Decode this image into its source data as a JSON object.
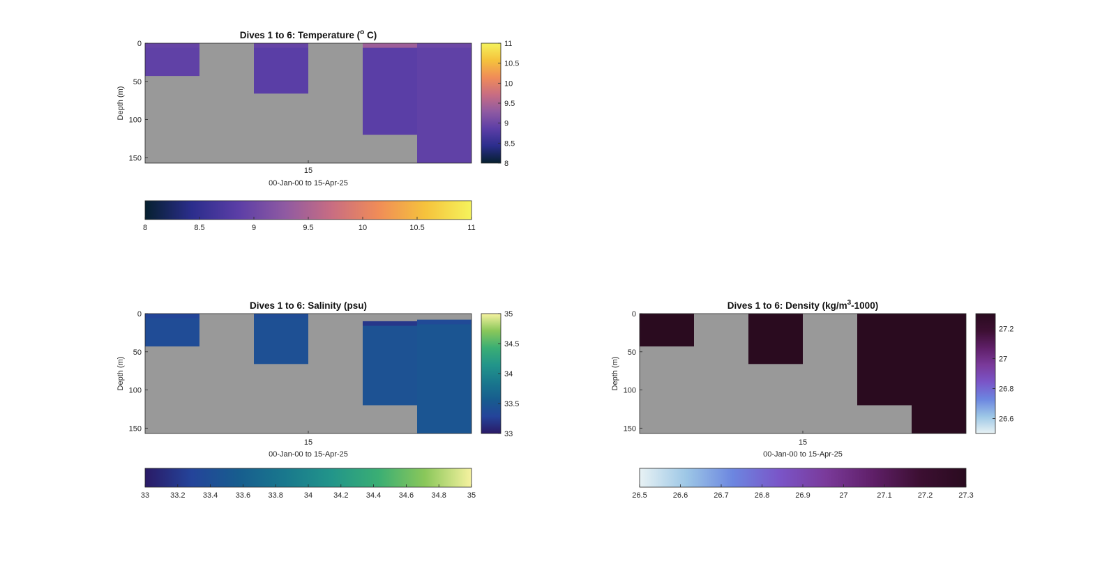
{
  "chart_data": [
    {
      "type": "heatmap",
      "title": {
        "main": "Dives 1 to 6: Temperature (",
        "sup": "o",
        "tail": " C)"
      },
      "ylabel": "Depth (m)",
      "xtick": "15",
      "xlabel": "00-Jan-00 to 15-Apr-25",
      "ylim": [
        0,
        157
      ],
      "yticks": [
        "0",
        "50",
        "100",
        "150"
      ],
      "clim": [
        8,
        11
      ],
      "side_cbar_ticks": [
        "8",
        "8.5",
        "9",
        "9.5",
        "10",
        "10.5",
        "11"
      ],
      "bottom_cbar_ticks": [
        "8",
        "8.5",
        "9",
        "9.5",
        "10",
        "10.5",
        "11"
      ],
      "colormap": [
        "#06202f",
        "#2b2d8c",
        "#5b3ea6",
        "#8f5aa2",
        "#c86d82",
        "#f08c58",
        "#f5c23c",
        "#f5f35c"
      ],
      "nodata_color": "#999999",
      "dives": [
        {
          "dive": 1,
          "max_depth": 43,
          "value": 8.9,
          "surface": 8.95
        },
        {
          "dive": 2,
          "max_depth": 0,
          "value": null
        },
        {
          "dive": 3,
          "max_depth": 66,
          "value": 8.85,
          "surface": 8.95
        },
        {
          "dive": 4,
          "max_depth": 0,
          "value": null
        },
        {
          "dive": 5,
          "max_depth": 120,
          "value": 8.85,
          "surface": 9.4
        },
        {
          "dive": 6,
          "max_depth": 157,
          "value": 8.9,
          "surface": 9.0
        }
      ]
    },
    {
      "type": "heatmap",
      "title": {
        "main": "Dives 1 to 6: Salinity (psu)",
        "sup": "",
        "tail": ""
      },
      "ylabel": "Depth (m)",
      "xtick": "15",
      "xlabel": "00-Jan-00 to 15-Apr-25",
      "ylim": [
        0,
        157
      ],
      "yticks": [
        "0",
        "50",
        "100",
        "150"
      ],
      "clim": [
        33,
        35
      ],
      "side_cbar_ticks": [
        "33",
        "33.5",
        "34",
        "34.5",
        "35"
      ],
      "bottom_cbar_ticks": [
        "33",
        "33.2",
        "33.4",
        "33.6",
        "33.8",
        "34",
        "34.2",
        "34.4",
        "34.6",
        "34.8",
        "35"
      ],
      "colormap": [
        "#2a1a66",
        "#24449a",
        "#175d8e",
        "#19788d",
        "#22958a",
        "#3aae74",
        "#8ac75a",
        "#f6f2a0"
      ],
      "nodata_color": "#999999",
      "dives": [
        {
          "dive": 1,
          "max_depth": 43,
          "value": 33.38,
          "surface": 33.3
        },
        {
          "dive": 2,
          "max_depth": 0,
          "value": null
        },
        {
          "dive": 3,
          "max_depth": 66,
          "value": 33.42,
          "surface": 33.38
        },
        {
          "dive": 4,
          "max_depth": 0,
          "value": null
        },
        {
          "dive": 5,
          "max_depth": 120,
          "value": 33.45,
          "surface": 33.2,
          "start_depth": 10
        },
        {
          "dive": 6,
          "max_depth": 157,
          "value": 33.48,
          "surface": 33.35,
          "start_depth": 8
        }
      ]
    },
    {
      "type": "heatmap",
      "title": {
        "main": "Dives 1 to 6: Density (kg/m",
        "sup": "3",
        "tail": "-1000)"
      },
      "ylabel": "Depth (m)",
      "xtick": "15",
      "xlabel": "00-Jan-00 to 15-Apr-25",
      "ylim": [
        0,
        157
      ],
      "yticks": [
        "0",
        "50",
        "100",
        "150"
      ],
      "clim": [
        26.5,
        27.3
      ],
      "side_cbar_ticks": [
        "26.6",
        "26.8",
        "27",
        "27.2"
      ],
      "bottom_cbar_ticks": [
        "26.5",
        "26.6",
        "26.7",
        "26.8",
        "26.9",
        "27",
        "27.1",
        "27.2",
        "27.3"
      ],
      "colormap": [
        "#e8f2f4",
        "#9dc7e6",
        "#6c86e0",
        "#7a55c8",
        "#7a3a9a",
        "#5f1f68",
        "#3c0f32",
        "#2a0b1f"
      ],
      "nodata_color": "#999999",
      "dives": [
        {
          "dive": 1,
          "max_depth": 43,
          "value": 27.3
        },
        {
          "dive": 2,
          "max_depth": 0,
          "value": null
        },
        {
          "dive": 3,
          "max_depth": 66,
          "value": 27.3
        },
        {
          "dive": 4,
          "max_depth": 0,
          "value": null
        },
        {
          "dive": 5,
          "max_depth": 120,
          "value": 27.3
        },
        {
          "dive": 6,
          "max_depth": 157,
          "value": 27.3
        }
      ]
    }
  ]
}
